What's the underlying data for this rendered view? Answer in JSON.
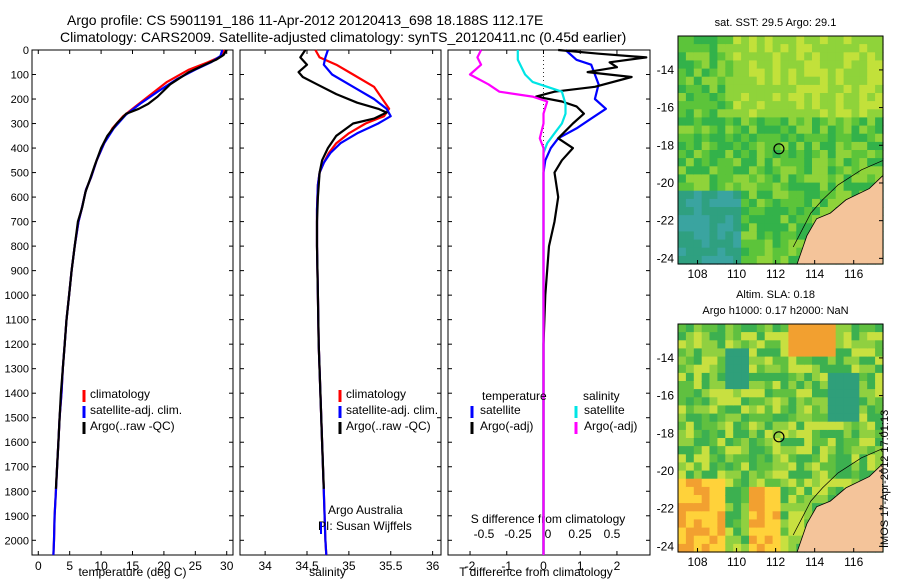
{
  "header": {
    "title_line1": "Argo profile: CS 5901191_186 11-Apr-2012 20120413_698 18.188S 112.17E",
    "title_line2": "Climatology: CARS2009. Satellite-adjusted climatology: synTS_20120411.nc (0.45d earlier)"
  },
  "footer_stamp": "IMOS 17-Apr-2012 17:01:13",
  "colors": {
    "climatology": "#ff0000",
    "satellite": "#0000ff",
    "argo": "#000000",
    "sat_salinity": "#00e5e5",
    "argo_salinity": "#ff00ff"
  },
  "chart_data": [
    {
      "type": "line",
      "name": "temperature-profile",
      "xlabel": "temperature (deg C)",
      "ylabel": "",
      "xlim": [
        -1,
        31
      ],
      "ylim": [
        2060,
        0
      ],
      "xticks": [
        0,
        5,
        10,
        15,
        20,
        25,
        30
      ],
      "yticks": [
        0,
        100,
        200,
        300,
        400,
        500,
        600,
        700,
        800,
        900,
        1000,
        1100,
        1200,
        1300,
        1400,
        1500,
        1600,
        1700,
        1800,
        1900,
        2000
      ],
      "legend": [
        "climatology",
        "satellite-adj. clim.",
        "Argo(..raw -QC)"
      ],
      "series": [
        {
          "name": "climatology",
          "color": "#ff0000",
          "points": [
            [
              29.6,
              0
            ],
            [
              29.2,
              25
            ],
            [
              27,
              50
            ],
            [
              24,
              80
            ],
            [
              20.5,
              130
            ],
            [
              18,
              180
            ],
            [
              15.5,
              230
            ],
            [
              13.5,
              270
            ],
            [
              11.8,
              320
            ],
            [
              10.5,
              380
            ],
            [
              9.3,
              450
            ],
            [
              8.4,
              520
            ],
            [
              7.6,
              570
            ],
            [
              6.9,
              650
            ],
            [
              6.4,
              700
            ],
            [
              5.8,
              800
            ],
            [
              5.3,
              900
            ],
            [
              4.9,
              1000
            ],
            [
              4.5,
              1100
            ],
            [
              4.2,
              1200
            ],
            [
              3.9,
              1300
            ],
            [
              3.7,
              1400
            ],
            [
              3.4,
              1500
            ],
            [
              3.2,
              1600
            ],
            [
              3,
              1700
            ],
            [
              2.8,
              1800
            ],
            [
              2.6,
              1900
            ],
            [
              2.5,
              2000
            ],
            [
              2.4,
              2060
            ]
          ]
        },
        {
          "name": "satellite-adj. clim.",
          "color": "#0000ff",
          "points": [
            [
              29.3,
              0
            ],
            [
              29,
              25
            ],
            [
              27.5,
              50
            ],
            [
              25,
              80
            ],
            [
              22,
              120
            ],
            [
              19,
              170
            ],
            [
              16.2,
              220
            ],
            [
              13.9,
              265
            ],
            [
              12,
              320
            ],
            [
              10.5,
              380
            ],
            [
              9.3,
              450
            ],
            [
              8.4,
              520
            ],
            [
              7.6,
              570
            ],
            [
              6.9,
              650
            ],
            [
              6.4,
              700
            ],
            [
              5.8,
              800
            ],
            [
              5.3,
              900
            ],
            [
              4.9,
              1000
            ],
            [
              4.5,
              1100
            ],
            [
              4.2,
              1200
            ],
            [
              3.9,
              1300
            ],
            [
              3.7,
              1400
            ],
            [
              3.4,
              1500
            ],
            [
              3.2,
              1600
            ],
            [
              3,
              1700
            ],
            [
              2.8,
              1800
            ],
            [
              2.6,
              1900
            ],
            [
              2.5,
              2000
            ],
            [
              2.4,
              2060
            ]
          ]
        },
        {
          "name": "Argo(..raw -QC)",
          "color": "#000000",
          "points": [
            [
              30,
              0
            ],
            [
              29.5,
              20
            ],
            [
              28.3,
              40
            ],
            [
              26.5,
              60
            ],
            [
              24,
              90
            ],
            [
              21,
              140
            ],
            [
              19,
              190
            ],
            [
              17.5,
              220
            ],
            [
              16,
              240
            ],
            [
              14,
              260
            ],
            [
              12.5,
              300
            ],
            [
              11,
              350
            ],
            [
              10,
              400
            ],
            [
              9,
              470
            ],
            [
              8.2,
              530
            ],
            [
              7.5,
              580
            ],
            [
              7,
              640
            ],
            [
              6.3,
              700
            ],
            [
              5.8,
              800
            ],
            [
              5.3,
              900
            ],
            [
              4.9,
              1000
            ],
            [
              4.5,
              1100
            ],
            [
              4.2,
              1200
            ],
            [
              3.9,
              1300
            ],
            [
              3.6,
              1400
            ],
            [
              3.4,
              1500
            ],
            [
              3.2,
              1600
            ],
            [
              3,
              1700
            ],
            [
              2.8,
              1790
            ]
          ]
        }
      ]
    },
    {
      "type": "line",
      "name": "salinity-profile",
      "xlabel": "salinity",
      "ylabel": "",
      "xlim": [
        33.7,
        36.1
      ],
      "ylim": [
        2060,
        0
      ],
      "xticks": [
        34,
        34.5,
        35,
        35.5,
        36
      ],
      "legend": [
        "climatology",
        "satellite-adj. clim.",
        "Argo(..raw -QC)"
      ],
      "annotations": [
        "Argo Australia",
        "PI: Susan Wijffels"
      ],
      "series": [
        {
          "name": "climatology",
          "color": "#ff0000",
          "points": [
            [
              34.6,
              0
            ],
            [
              34.65,
              30
            ],
            [
              34.85,
              60
            ],
            [
              35.05,
              100
            ],
            [
              35.3,
              150
            ],
            [
              35.4,
              200
            ],
            [
              35.48,
              240
            ],
            [
              35.42,
              270
            ],
            [
              35.2,
              300
            ],
            [
              35,
              340
            ],
            [
              34.85,
              380
            ],
            [
              34.76,
              420
            ],
            [
              34.7,
              460
            ],
            [
              34.65,
              500
            ],
            [
              34.63,
              550
            ],
            [
              34.62,
              650
            ],
            [
              34.62,
              800
            ],
            [
              34.63,
              1000
            ],
            [
              34.64,
              1200
            ],
            [
              34.66,
              1400
            ],
            [
              34.68,
              1600
            ],
            [
              34.7,
              1800
            ],
            [
              34.72,
              2000
            ],
            [
              34.73,
              2060
            ]
          ]
        },
        {
          "name": "satellite-adj. clim.",
          "color": "#0000ff",
          "points": [
            [
              34.75,
              0
            ],
            [
              34.72,
              30
            ],
            [
              34.7,
              60
            ],
            [
              34.8,
              100
            ],
            [
              35.1,
              160
            ],
            [
              35.3,
              200
            ],
            [
              35.45,
              240
            ],
            [
              35.5,
              270
            ],
            [
              35.35,
              300
            ],
            [
              35.1,
              340
            ],
            [
              34.9,
              380
            ],
            [
              34.78,
              420
            ],
            [
              34.7,
              460
            ],
            [
              34.65,
              500
            ],
            [
              34.63,
              550
            ],
            [
              34.62,
              650
            ],
            [
              34.62,
              800
            ],
            [
              34.63,
              1000
            ],
            [
              34.64,
              1200
            ],
            [
              34.66,
              1400
            ],
            [
              34.68,
              1600
            ],
            [
              34.7,
              1800
            ],
            [
              34.72,
              2000
            ],
            [
              34.73,
              2060
            ]
          ]
        },
        {
          "name": "Argo(..raw -QC)",
          "color": "#000000",
          "points": [
            [
              34.48,
              0
            ],
            [
              34.42,
              30
            ],
            [
              34.5,
              60
            ],
            [
              34.4,
              90
            ],
            [
              34.45,
              110
            ],
            [
              34.62,
              140
            ],
            [
              34.85,
              180
            ],
            [
              35.1,
              215
            ],
            [
              35.35,
              240
            ],
            [
              35.45,
              255
            ],
            [
              35.3,
              280
            ],
            [
              35.05,
              300
            ],
            [
              34.85,
              350
            ],
            [
              34.75,
              400
            ],
            [
              34.68,
              450
            ],
            [
              34.65,
              500
            ],
            [
              34.63,
              600
            ],
            [
              34.62,
              700
            ],
            [
              34.62,
              800
            ],
            [
              34.63,
              1000
            ],
            [
              34.64,
              1200
            ],
            [
              34.66,
              1400
            ],
            [
              34.68,
              1600
            ],
            [
              34.7,
              1790
            ]
          ]
        }
      ]
    },
    {
      "type": "line",
      "name": "difference-profile",
      "xlabel": "T difference from climatology",
      "x2label": "S difference from climatology",
      "xlim": [
        -2.6,
        2.9
      ],
      "ylim": [
        2060,
        0
      ],
      "xticks": [
        -2,
        -1,
        0,
        1,
        2
      ],
      "x2ticks": [
        -0.5,
        -0.25,
        0,
        0.25,
        0.5
      ],
      "legend_titles": [
        "temperature",
        "salinity"
      ],
      "legend": [
        "satellite",
        "Argo(-adj)",
        "satellite",
        "Argo(-adj)"
      ],
      "series": [
        {
          "name": "temperature satellite",
          "color": "#0000ff",
          "points": [
            [
              0.6,
              0
            ],
            [
              0.9,
              40
            ],
            [
              1.3,
              60
            ],
            [
              1.4,
              100
            ],
            [
              1.5,
              140
            ],
            [
              1.4,
              200
            ],
            [
              1.7,
              240
            ],
            [
              1.3,
              280
            ],
            [
              0.9,
              320
            ],
            [
              0.4,
              360
            ],
            [
              0.2,
              400
            ],
            [
              0.05,
              450
            ],
            [
              0,
              500
            ],
            [
              0,
              2060
            ]
          ]
        },
        {
          "name": "temperature Argo(-adj)",
          "color": "#000000",
          "points": [
            [
              0.4,
              0
            ],
            [
              1.5,
              15
            ],
            [
              2.8,
              30
            ],
            [
              1.8,
              50
            ],
            [
              2,
              70
            ],
            [
              1.2,
              90
            ],
            [
              2.4,
              110
            ],
            [
              1.4,
              150
            ],
            [
              0.3,
              170
            ],
            [
              -0.2,
              190
            ],
            [
              0.5,
              210
            ],
            [
              0.9,
              230
            ],
            [
              1.1,
              260
            ],
            [
              0.8,
              300
            ],
            [
              0.4,
              360
            ],
            [
              0.8,
              400
            ],
            [
              0.5,
              450
            ],
            [
              0.3,
              500
            ],
            [
              0.4,
              600
            ],
            [
              0.3,
              700
            ],
            [
              0.15,
              800
            ],
            [
              0.05,
              1000
            ],
            [
              0,
              1200
            ],
            [
              0,
              2060
            ]
          ]
        },
        {
          "name": "salinity satellite",
          "color": "#00e5e5",
          "points": [
            [
              -0.7,
              0
            ],
            [
              -0.7,
              40
            ],
            [
              -0.6,
              70
            ],
            [
              -0.5,
              100
            ],
            [
              -0.3,
              130
            ],
            [
              0.5,
              170
            ],
            [
              0.6,
              220
            ],
            [
              0.6,
              260
            ],
            [
              0.5,
              300
            ],
            [
              0.3,
              340
            ],
            [
              0.1,
              380
            ],
            [
              0,
              420
            ],
            [
              0,
              500
            ],
            [
              0,
              2060
            ]
          ]
        },
        {
          "name": "salinity Argo(-adj)",
          "color": "#ff00ff",
          "points": [
            [
              -1.7,
              0
            ],
            [
              -1.8,
              30
            ],
            [
              -1.7,
              60
            ],
            [
              -2,
              100
            ],
            [
              -1.5,
              140
            ],
            [
              -1.2,
              170
            ],
            [
              -0.3,
              190
            ],
            [
              0.1,
              210
            ],
            [
              0,
              260
            ],
            [
              0,
              300
            ],
            [
              -0.1,
              360
            ],
            [
              0,
              400
            ],
            [
              0,
              500
            ],
            [
              0,
              2060
            ]
          ]
        }
      ]
    },
    {
      "type": "heatmap",
      "name": "sst-map",
      "title": "sat. SST: 29.5 Argo: 29.1",
      "xlim": [
        107,
        117.5
      ],
      "ylim": [
        -24.3,
        -12.2
      ],
      "xticks": [
        108,
        110,
        112,
        114,
        116
      ],
      "yticks": [
        -14,
        -16,
        -18,
        -20,
        -22,
        -24
      ],
      "argo_position": [
        112.17,
        -18.188
      ]
    },
    {
      "type": "heatmap",
      "name": "sla-map",
      "title": "Altim. SLA: 0.18",
      "subtitle": "Argo h1000: 0.17 h2000: NaN",
      "xlim": [
        107,
        117.5
      ],
      "ylim": [
        -24.3,
        -12.2
      ],
      "xticks": [
        108,
        110,
        112,
        114,
        116
      ],
      "yticks": [
        -14,
        -16,
        -18,
        -20,
        -22,
        -24
      ],
      "argo_position": [
        112.17,
        -18.188
      ]
    }
  ]
}
